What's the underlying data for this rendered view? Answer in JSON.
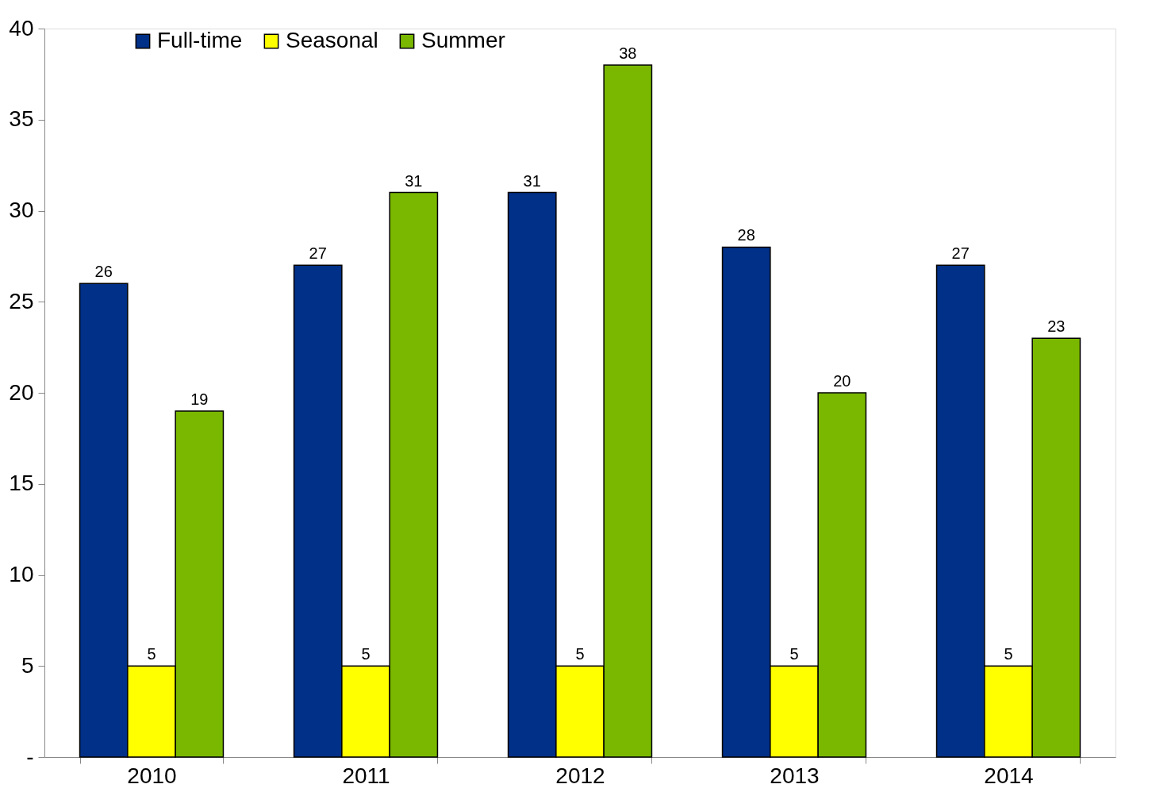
{
  "chart_data": {
    "type": "bar",
    "categories": [
      "2010",
      "2011",
      "2012",
      "2013",
      "2014"
    ],
    "series": [
      {
        "name": "Full-time",
        "color": "#003087",
        "values": [
          26,
          27,
          31,
          28,
          27
        ]
      },
      {
        "name": "Seasonal",
        "color": "#ffff00",
        "values": [
          5,
          5,
          5,
          5,
          5
        ]
      },
      {
        "name": "Summer",
        "color": "#7ab800",
        "values": [
          19,
          31,
          38,
          20,
          23
        ]
      }
    ],
    "ylim": [
      0,
      40
    ],
    "yticks": [
      {
        "value": 0,
        "label": "-"
      },
      5,
      10,
      15,
      20,
      25,
      30,
      35,
      40
    ],
    "grid": false,
    "legend": "top left",
    "data_labels": true
  }
}
